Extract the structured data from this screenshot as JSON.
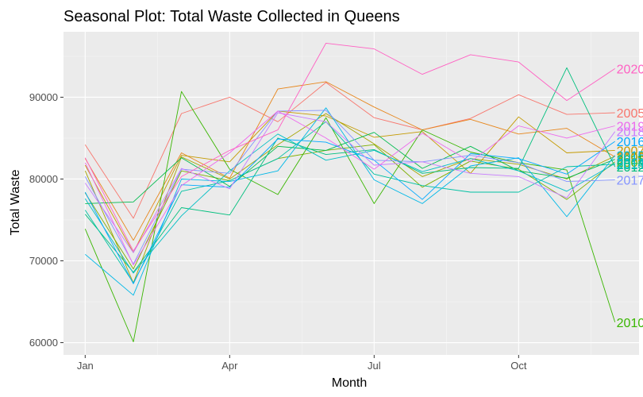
{
  "chart_data": {
    "type": "line",
    "title": "Seasonal Plot: Total Waste Collected in Queens",
    "xlabel": "Month",
    "ylabel": "Total Waste",
    "x": [
      1,
      2,
      3,
      4,
      5,
      6,
      7,
      8,
      9,
      10,
      11,
      12
    ],
    "x_ticks": [
      {
        "value": 1,
        "label": "Jan"
      },
      {
        "value": 4,
        "label": "Apr"
      },
      {
        "value": 7,
        "label": "Jul"
      },
      {
        "value": 10,
        "label": "Oct"
      }
    ],
    "y_ticks": [
      60000,
      70000,
      80000,
      90000
    ],
    "y_tick_labels": [
      "60000",
      "70000",
      "80000",
      "90000"
    ],
    "xlim": [
      0.55,
      12.5
    ],
    "ylim": [
      58500,
      98000
    ],
    "grid": true,
    "series": [
      {
        "name": "2005",
        "color": "#F8766D",
        "values": [
          84200,
          75200,
          88000,
          90000,
          87000,
          91800,
          87500,
          86000,
          87400,
          90300,
          87900,
          88100
        ]
      },
      {
        "name": "2006",
        "color": "#E7861B",
        "values": [
          82500,
          72500,
          83200,
          80100,
          91000,
          91900,
          88800,
          86000,
          87300,
          85500,
          86200,
          82700
        ]
      },
      {
        "name": "2007",
        "color": "#C49A00",
        "values": [
          81700,
          71000,
          82900,
          82100,
          88300,
          87700,
          85100,
          85800,
          80700,
          87600,
          83200,
          83500
        ]
      },
      {
        "name": "2008",
        "color": "#A5A500",
        "values": [
          81000,
          67300,
          82700,
          80000,
          84200,
          88000,
          84300,
          80300,
          82500,
          81800,
          80000,
          82800
        ]
      },
      {
        "name": "2009",
        "color": "#7CAE00",
        "values": [
          78300,
          69000,
          81000,
          79800,
          82500,
          83500,
          84200,
          79000,
          82200,
          81200,
          77500,
          82100
        ]
      },
      {
        "name": "2010",
        "color": "#39B600",
        "values": [
          73900,
          60100,
          90700,
          81200,
          78100,
          87500,
          77000,
          86000,
          83300,
          82000,
          81100,
          62500
        ]
      },
      {
        "name": "2011",
        "color": "#00BB4E",
        "values": [
          77000,
          77200,
          82600,
          79100,
          84000,
          83500,
          85700,
          81300,
          84000,
          81000,
          80100,
          82400
        ]
      },
      {
        "name": "2012",
        "color": "#00BF7D",
        "values": [
          75700,
          68600,
          76500,
          75600,
          85000,
          83000,
          83600,
          80700,
          81400,
          81300,
          93600,
          81500
        ]
      },
      {
        "name": "2013",
        "color": "#00C1A3",
        "values": [
          76200,
          67300,
          78500,
          79800,
          82500,
          87000,
          80600,
          79200,
          78400,
          78400,
          81500,
          81800
        ]
      },
      {
        "name": "2014",
        "color": "#00BFC4",
        "values": [
          77600,
          68500,
          75500,
          81000,
          85500,
          82300,
          83500,
          80900,
          82500,
          81000,
          78500,
          81900
        ]
      },
      {
        "name": "2015",
        "color": "#00B8E7",
        "values": [
          70800,
          65800,
          80000,
          79700,
          81000,
          88700,
          79900,
          77000,
          81600,
          82600,
          75400,
          82900
        ]
      },
      {
        "name": "2016",
        "color": "#00A9FF",
        "values": [
          78400,
          67200,
          79300,
          79000,
          84900,
          84500,
          82300,
          77500,
          83100,
          82500,
          80600,
          84600
        ]
      },
      {
        "name": "2017",
        "color": "#8494FF",
        "values": [
          80300,
          69600,
          81200,
          80700,
          88300,
          88400,
          82300,
          82100,
          82900,
          82000,
          79700,
          79900
        ]
      },
      {
        "name": "2018",
        "color": "#C77CFF",
        "values": [
          79500,
          71000,
          81300,
          78800,
          88100,
          87000,
          81700,
          82100,
          80700,
          80300,
          77700,
          85800
        ]
      },
      {
        "name": "2019",
        "color": "#ED68ED",
        "values": [
          82000,
          69500,
          79200,
          83200,
          88300,
          85000,
          81200,
          85600,
          82100,
          86500,
          85000,
          86500
        ]
      },
      {
        "name": "2020",
        "color": "#FF61C3",
        "values": [
          82600,
          71200,
          80300,
          83500,
          86000,
          96600,
          95900,
          92800,
          95200,
          94300,
          89600,
          93500
        ]
      }
    ]
  }
}
